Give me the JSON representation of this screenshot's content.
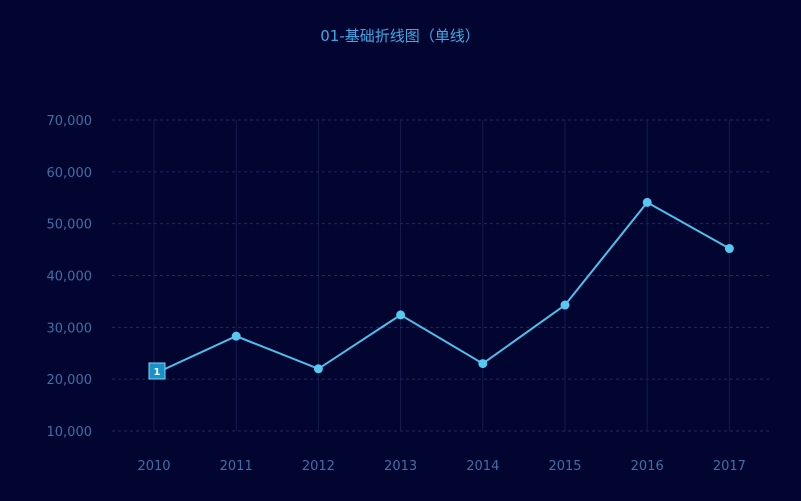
{
  "chart_data": {
    "type": "line",
    "title": "01-基础折线图（单线）",
    "x": [
      "2010",
      "2011",
      "2012",
      "2013",
      "2014",
      "2015",
      "2016",
      "2017"
    ],
    "series": [
      {
        "values": [
          21000,
          28300,
          22000,
          32400,
          23000,
          34300,
          54100,
          45200
        ]
      }
    ],
    "yticks": [
      10000,
      20000,
      30000,
      40000,
      50000,
      60000,
      70000
    ],
    "ytick_labels": [
      "10,000",
      "20,000",
      "30,000",
      "40,000",
      "50,000",
      "60,000",
      "70,000"
    ],
    "ylim": [
      10000,
      70000
    ],
    "grid": true,
    "line_color": "#4fc0ee",
    "marker_label": "1",
    "marker_index": 0
  }
}
